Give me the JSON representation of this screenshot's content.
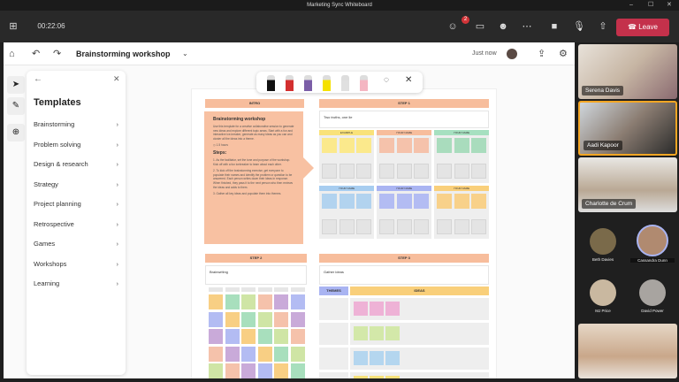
{
  "window": {
    "title": "Marketing Sync Whiteboard",
    "minimize": "–",
    "maximize": "☐",
    "close": "✕"
  },
  "meeting": {
    "timer": "00:22:06",
    "participants_badge": "2",
    "leave_label": "Leave",
    "accent": "#c4314b"
  },
  "whiteboard": {
    "title": "Brainstorming workshop",
    "saved_status": "Just now"
  },
  "templates_panel": {
    "title": "Templates",
    "items": [
      {
        "label": "Brainstorming"
      },
      {
        "label": "Problem solving"
      },
      {
        "label": "Design & research"
      },
      {
        "label": "Strategy"
      },
      {
        "label": "Project planning"
      },
      {
        "label": "Retrospective"
      },
      {
        "label": "Games"
      },
      {
        "label": "Workshops"
      },
      {
        "label": "Learning"
      }
    ]
  },
  "ink_tools": {
    "pens": [
      "#111111",
      "#d32f2f",
      "#7b5ea7",
      "#f5e100",
      "#e0e0e0",
      "#f4b6c2"
    ]
  },
  "board": {
    "intro": {
      "header": "INTRO",
      "title": "Brainstorming workshop",
      "body": "Use this template for a creative collaborative session to generate new ideas and explore different topic areas. Start with a fun and interactive ice-breaker, generate as many ideas as you can and cluster all the ideas into a theme.",
      "duration": "1.5 hours",
      "steps_title": "Steps:",
      "steps": [
        "1. As the facilitator, set the tone and purpose of the workshop. Kick off with a fun icebreaker to learn about each other.",
        "2. To kick off the brainstorming exercise, get everyone to populate their names and identify the problem or question to be answered. Each person writes down their ideas in response. When finished, they pass it to the next person who then reviews the ideas and adds to them.",
        "3. Gather all key ideas and populate them into themes."
      ]
    },
    "step1": {
      "header": "STEP 1",
      "card_title": "Two truths, one lie",
      "groups": [
        {
          "label": "EXAMPLE",
          "color": "#f9e27a",
          "sticky": "#fbe98c"
        },
        {
          "label": "YOUR NAME",
          "color": "#f7bd9c",
          "sticky": "#f5c2ab"
        },
        {
          "label": "YOUR NAME",
          "color": "#a6e0c0",
          "sticky": "#a9dcbd"
        },
        {
          "label": "YOUR NAME",
          "color": "#a7cdf0",
          "sticky": "#b2d3ef"
        },
        {
          "label": "YOUR NAME",
          "color": "#a9b4f2",
          "sticky": "#b3bcf3"
        },
        {
          "label": "YOUR NAME",
          "color": "#f9cf7a",
          "sticky": "#f8d18a"
        }
      ]
    },
    "step2": {
      "header": "STEP 2",
      "card_title": "Brainwriting",
      "palette": [
        "#f8cf84",
        "#a8dfbd",
        "#cfe5a5",
        "#f5c2ab",
        "#c9aad9",
        "#b3bcf3"
      ]
    },
    "step3": {
      "header": "STEP 3",
      "card_title": "Gather ideas",
      "themes_label": "THEMES",
      "ideas_label": "IDEAS",
      "rows": [
        "#eeb2d6",
        "#d3e8a9",
        "#b4d6ef",
        "#f9e27a"
      ]
    }
  },
  "participants": [
    {
      "name": "Serena Davis"
    },
    {
      "name": "Aadi Kapoor",
      "active_speaker": true
    },
    {
      "name": "Charlotte de Crum"
    },
    {
      "name": "Beth Davies"
    },
    {
      "name": "Cassandra Dunn"
    },
    {
      "name": "MJ Price"
    },
    {
      "name": "David Power"
    },
    {
      "name": ""
    }
  ]
}
